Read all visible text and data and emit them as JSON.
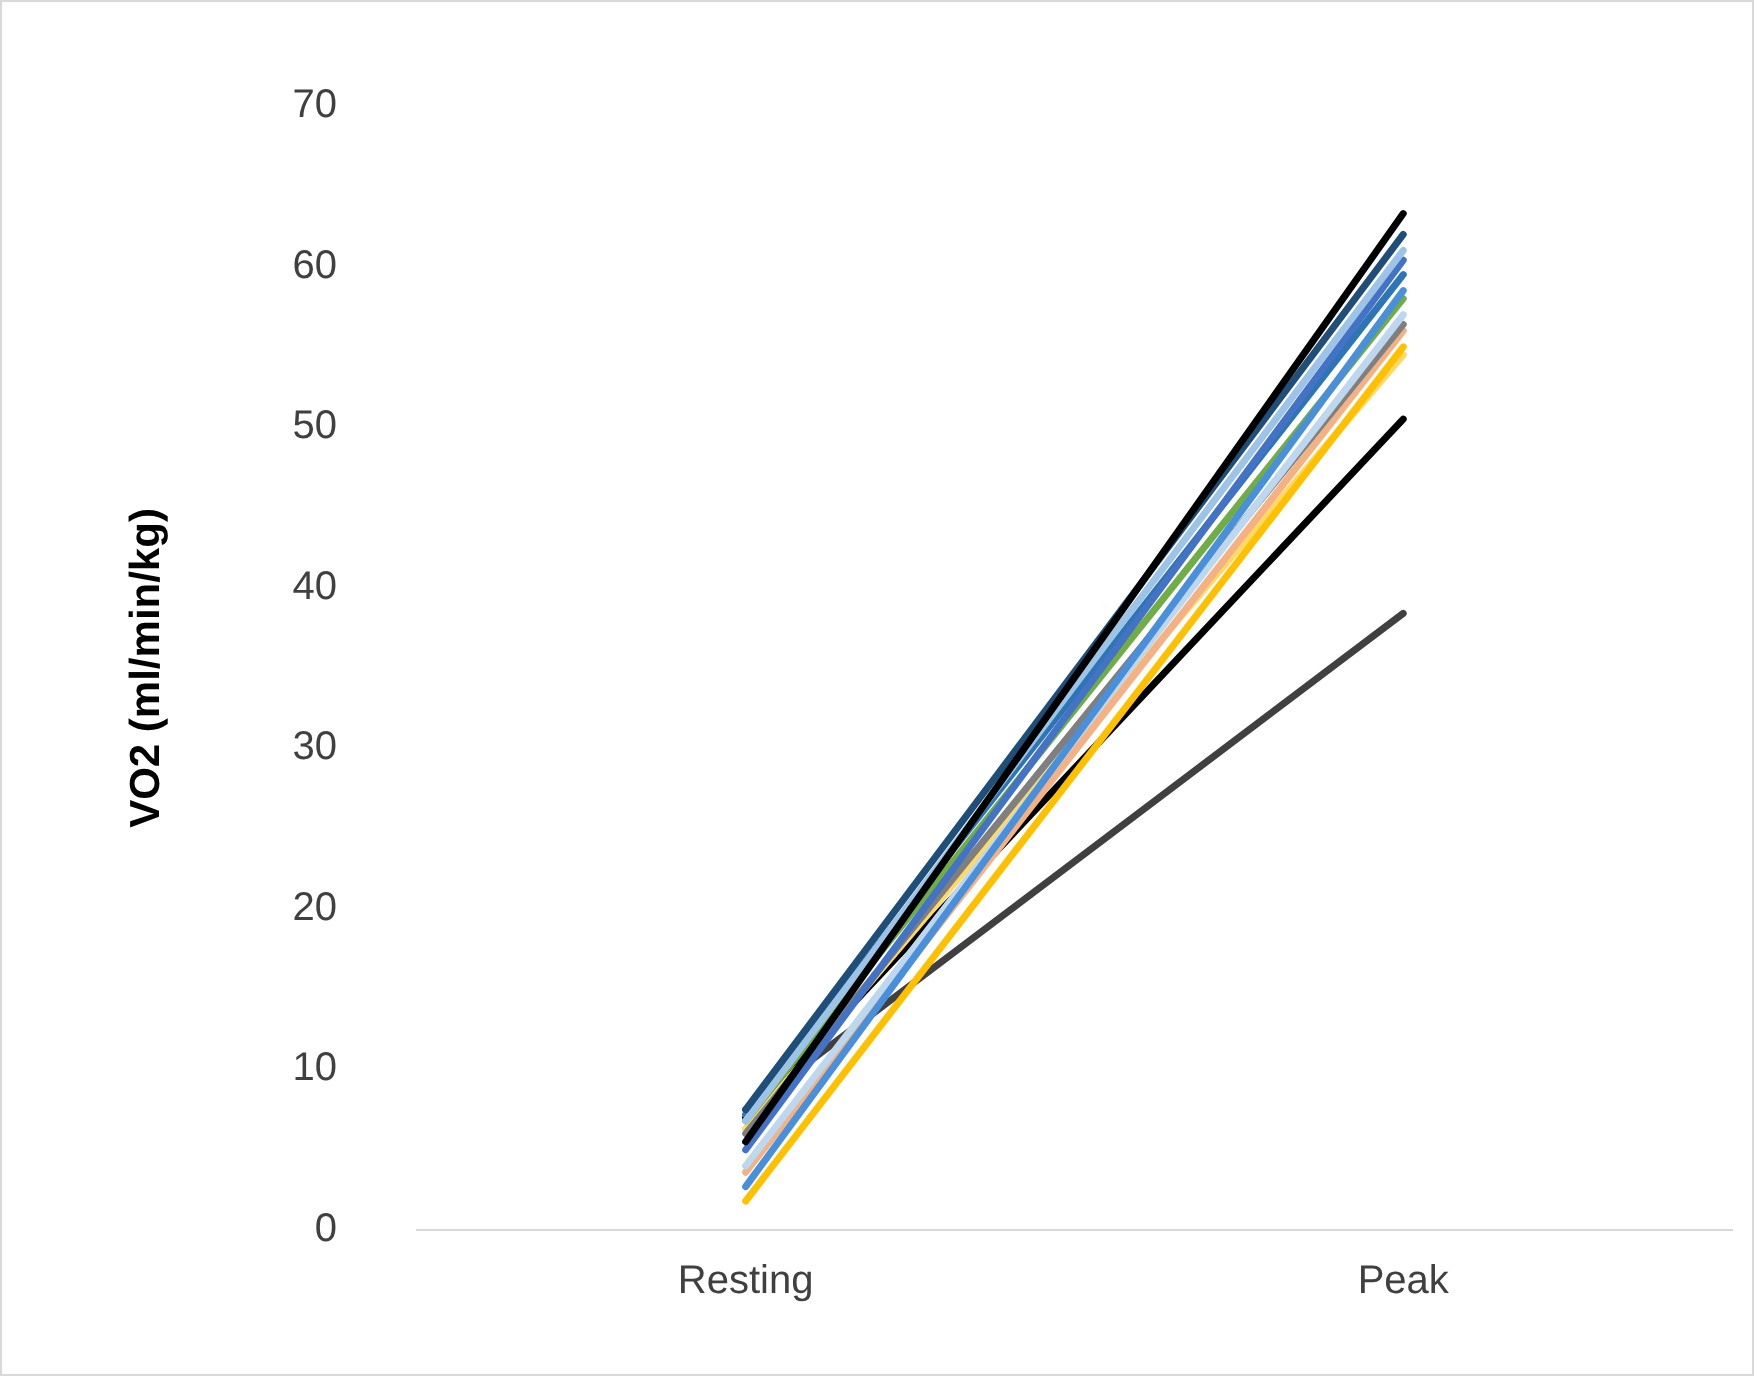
{
  "chart_data": {
    "type": "line",
    "ylabel": "VO2 (ml/min/kg)",
    "categories": [
      "Resting",
      "Peak"
    ],
    "ylim": [
      0,
      70
    ],
    "yticks": [
      0,
      10,
      20,
      30,
      40,
      50,
      60,
      70
    ],
    "grid": false,
    "legend": false,
    "marker": "none",
    "line_style": "solid",
    "series": [
      {
        "color": "#000000",
        "values": [
          5.5,
          63.3
        ]
      },
      {
        "color": "#1f4e79",
        "values": [
          7.5,
          62
        ]
      },
      {
        "color": "#9dc3e6",
        "values": [
          6.8,
          61
        ]
      },
      {
        "color": "#4472c4",
        "values": [
          5.0,
          60.4
        ]
      },
      {
        "color": "#2e75b6",
        "values": [
          7.2,
          59.5
        ]
      },
      {
        "color": "#4a8fd9",
        "values": [
          2.7,
          58.5
        ]
      },
      {
        "color": "#70ad47",
        "values": [
          6.8,
          58
        ]
      },
      {
        "color": "#bdd7ee",
        "values": [
          4.0,
          57
        ]
      },
      {
        "color": "#7f7f7f",
        "values": [
          6.0,
          56.4
        ]
      },
      {
        "color": "#f4b183",
        "values": [
          3.6,
          56
        ]
      },
      {
        "color": "#ffc000",
        "values": [
          1.8,
          55
        ]
      },
      {
        "color": "#ffd966",
        "values": [
          6.3,
          54.5
        ]
      },
      {
        "color": "#000000",
        "values": [
          7.0,
          50.5
        ]
      },
      {
        "color": "#404040",
        "values": [
          7.5,
          38.4
        ]
      }
    ]
  }
}
